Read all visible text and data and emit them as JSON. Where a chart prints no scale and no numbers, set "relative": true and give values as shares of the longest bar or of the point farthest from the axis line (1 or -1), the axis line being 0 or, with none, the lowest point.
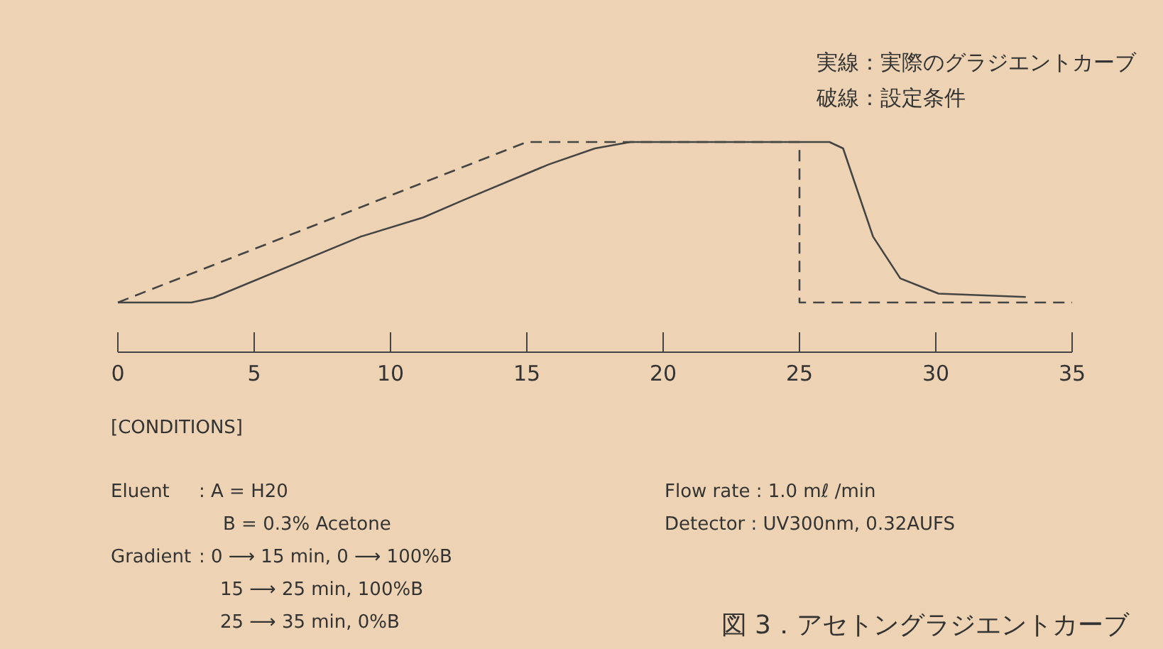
{
  "chart_data": {
    "type": "line",
    "title": "図 3．アセトングラジエントカーブ",
    "relative": true,
    "xlim": [
      0,
      35
    ],
    "xticks": [
      0,
      5,
      10,
      15,
      20,
      25,
      30,
      35
    ],
    "series": [
      {
        "color": "#444444",
        "line_style": "solid",
        "x": [
          0,
          2.5,
          2.7,
          3.5,
          8.9,
          11.2,
          12.7,
          15.8,
          17.5,
          18.8,
          26.1,
          26.6,
          27.7,
          28.7,
          30.1,
          33.3
        ],
        "values": [
          0,
          0,
          0,
          0.03,
          0.41,
          0.53,
          0.64,
          0.86,
          0.96,
          1,
          1,
          0.96,
          0.41,
          0.15,
          0.055,
          0.034
        ]
      },
      {
        "color": "#444444",
        "line_style": "dashed",
        "x": [
          0,
          15,
          25,
          25,
          35
        ],
        "values": [
          0,
          1,
          1,
          0,
          0
        ]
      }
    ],
    "annotations": [
      "実線：実際のグラジエントカーブ",
      "破線：設定条件",
      "[CONDITIONS]",
      "Eluent",
      ":  A = H20",
      "B = 0.3% Acetone",
      "Gradient",
      ":  0 ⟶ 15 min, 0 ⟶ 100%B",
      "15 ⟶ 25 min, 100%B",
      "25 ⟶ 35 min, 0%B",
      "Flow rate : 1.0 mℓ /min",
      "Detector  : UV300nm, 0.32AUFS"
    ]
  }
}
